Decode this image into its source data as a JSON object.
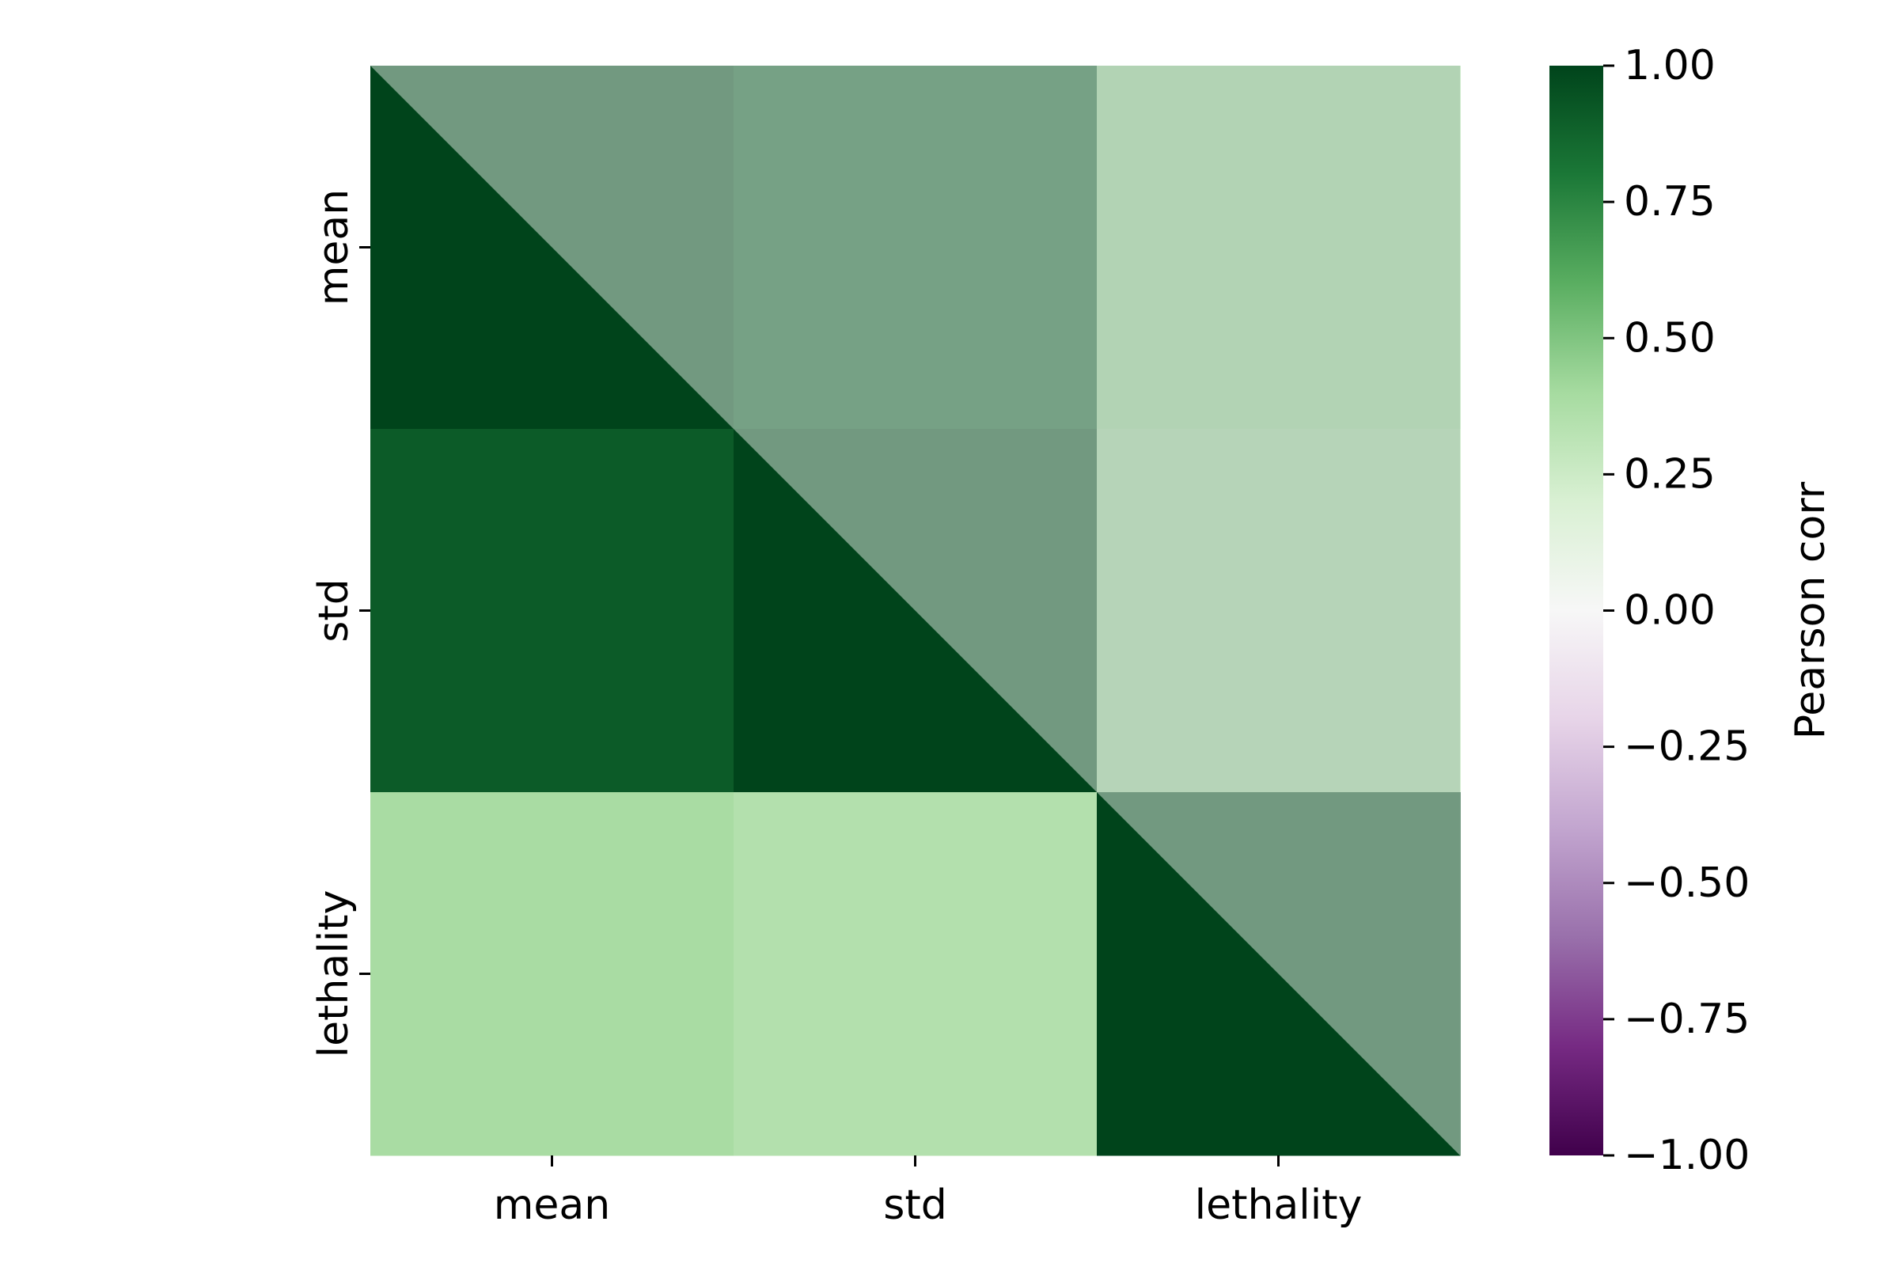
{
  "chart_data": {
    "type": "heatmap",
    "x_labels": [
      "mean",
      "std",
      "lethality"
    ],
    "y_labels": [
      "mean",
      "std",
      "lethality"
    ],
    "values": [
      [
        1.0,
        0.91,
        0.39
      ],
      [
        0.91,
        1.0,
        0.35
      ],
      [
        0.39,
        0.35,
        1.0
      ]
    ],
    "masked_upper_triangle": true,
    "mask_overlay_color": "#b8cdbf",
    "mask_overlay_opacity": 0.62,
    "colormap": "PRGn",
    "colormap_stops": [
      "#40004b",
      "#762a83",
      "#9970ab",
      "#c2a5cf",
      "#e7d4e8",
      "#f7f7f7",
      "#d9f0d3",
      "#a6dba0",
      "#5aae61",
      "#1b7837",
      "#00441b"
    ],
    "colorbar": {
      "label": "Pearson corr",
      "vmin": -1.0,
      "vmax": 1.0,
      "ticks": [
        1.0,
        0.75,
        0.5,
        0.25,
        0.0,
        -0.25,
        -0.5,
        -0.75,
        -1.0
      ],
      "tick_labels": [
        "1.00",
        "0.75",
        "0.50",
        "0.25",
        "0.00",
        "−0.25",
        "−0.50",
        "−0.75",
        "−1.00"
      ]
    }
  }
}
